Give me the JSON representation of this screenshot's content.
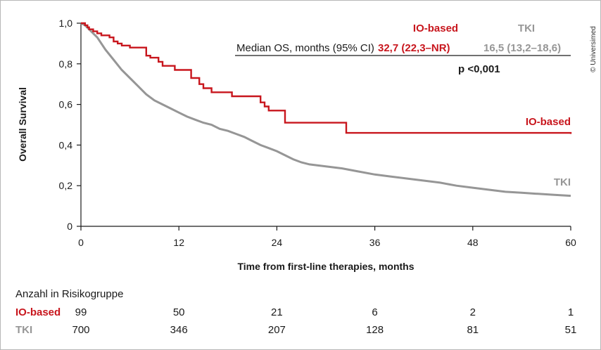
{
  "chart_data": {
    "type": "line",
    "subtype": "kaplan-meier",
    "xlabel": "Time from first-line therapies, months",
    "ylabel": "Overall Survival",
    "xlim": [
      0,
      60
    ],
    "ylim": [
      0,
      1
    ],
    "x_ticks": [
      0,
      12,
      24,
      36,
      48,
      60
    ],
    "x_tick_labels": [
      "0",
      "12",
      "24",
      "36",
      "48",
      "60"
    ],
    "y_ticks": [
      0,
      0.2,
      0.4,
      0.6,
      0.8,
      1.0
    ],
    "y_tick_labels": [
      "0",
      "0,2",
      "0,4",
      "0,6",
      "0,8",
      "1,0"
    ],
    "grid": false,
    "colors": {
      "io": "#c8161d",
      "tki": "#969696"
    },
    "series": [
      {
        "name": "IO-based",
        "color": "#c8161d",
        "step": true,
        "x": [
          0,
          0.5,
          0.8,
          1.0,
          1.5,
          2.0,
          2.5,
          3.5,
          4.0,
          4.5,
          5.0,
          6.0,
          8.0,
          8.5,
          9.5,
          10.0,
          11.5,
          13.5,
          14.5,
          15.0,
          16.0,
          18.5,
          22.0,
          22.5,
          23.0,
          25.0,
          32.5,
          60.0
        ],
        "y": [
          1.0,
          0.99,
          0.98,
          0.97,
          0.96,
          0.95,
          0.94,
          0.93,
          0.91,
          0.9,
          0.89,
          0.88,
          0.84,
          0.83,
          0.81,
          0.79,
          0.77,
          0.73,
          0.7,
          0.68,
          0.66,
          0.64,
          0.61,
          0.59,
          0.57,
          0.51,
          0.46,
          0.455
        ]
      },
      {
        "name": "TKI",
        "color": "#969696",
        "step": false,
        "x": [
          0,
          0.5,
          1,
          1.5,
          2,
          3,
          4,
          5,
          6,
          7,
          8,
          9,
          10,
          11,
          12,
          13,
          14,
          15,
          16,
          17,
          18,
          19,
          20,
          21,
          22,
          23,
          24,
          25,
          26,
          27,
          28,
          30,
          32,
          34,
          36,
          38,
          40,
          42,
          44,
          46,
          48,
          50,
          52,
          54,
          56,
          58,
          60
        ],
        "y": [
          1.0,
          0.99,
          0.97,
          0.95,
          0.93,
          0.87,
          0.82,
          0.77,
          0.73,
          0.69,
          0.65,
          0.62,
          0.6,
          0.58,
          0.56,
          0.54,
          0.525,
          0.51,
          0.5,
          0.48,
          0.47,
          0.455,
          0.44,
          0.42,
          0.4,
          0.385,
          0.37,
          0.35,
          0.33,
          0.315,
          0.305,
          0.295,
          0.285,
          0.27,
          0.255,
          0.245,
          0.235,
          0.225,
          0.215,
          0.2,
          0.19,
          0.18,
          0.17,
          0.165,
          0.16,
          0.155,
          0.15
        ]
      }
    ],
    "curve_labels": {
      "io": "IO-based",
      "tki": "TKI"
    }
  },
  "summary_table": {
    "header_io": "IO-based",
    "header_tki": "TKI",
    "row_label": "Median OS, months (95% CI)",
    "io_value": "32,7 (22,3–NR)",
    "tki_value": "16,5 (13,2–18,6)",
    "p_value": "p <0,001"
  },
  "risk_table": {
    "title": "Anzahl in Risikogruppe",
    "io_label": "IO-based",
    "tki_label": "TKI",
    "times": [
      0,
      12,
      24,
      36,
      48,
      60
    ],
    "io_values": [
      "99",
      "50",
      "21",
      "6",
      "2",
      "1"
    ],
    "tki_values": [
      "700",
      "346",
      "207",
      "128",
      "81",
      "51"
    ]
  },
  "credit": "© Universimed"
}
